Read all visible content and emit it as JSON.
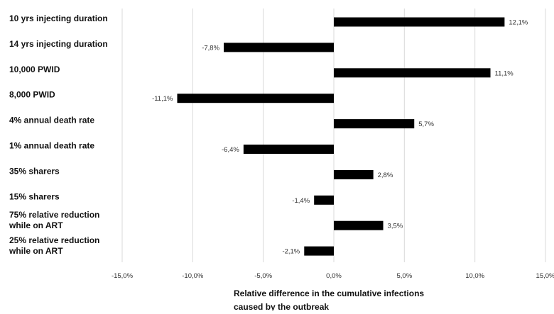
{
  "chart_data": {
    "type": "bar",
    "orientation": "horizontal",
    "categories": [
      [
        "10 yrs injecting duration"
      ],
      [
        "14 yrs injecting duration"
      ],
      [
        "10,000 PWID"
      ],
      [
        "8,000 PWID"
      ],
      [
        "4% annual death rate"
      ],
      [
        "1% annual death rate"
      ],
      [
        "35% sharers"
      ],
      [
        "15% sharers"
      ],
      [
        "75% relative reduction",
        "while on ART"
      ],
      [
        "25% relative reduction",
        "while on ART"
      ]
    ],
    "values": [
      12.1,
      -7.8,
      11.1,
      -11.1,
      5.7,
      -6.4,
      2.8,
      -1.4,
      3.5,
      -2.1
    ],
    "data_labels": [
      "12,1%",
      "-7,8%",
      "11,1%",
      "-11,1%",
      "5,7%",
      "-6,4%",
      "2,8%",
      "-1,4%",
      "3,5%",
      "-2,1%"
    ],
    "xlim": [
      -15,
      15
    ],
    "xticks": [
      -15,
      -10,
      -5,
      0,
      5,
      10,
      15
    ],
    "xtick_labels": [
      "-15,0%",
      "-10,0%",
      "-5,0%",
      "0,0%",
      "5,0%",
      "10,0%",
      "15,0%"
    ],
    "xlabel": [
      "Relative difference in the cumulative infections",
      "caused by the outbreak"
    ],
    "ylabel": "",
    "title": "",
    "grid": "vertical",
    "legend": "none",
    "bar_color": "#000000"
  }
}
